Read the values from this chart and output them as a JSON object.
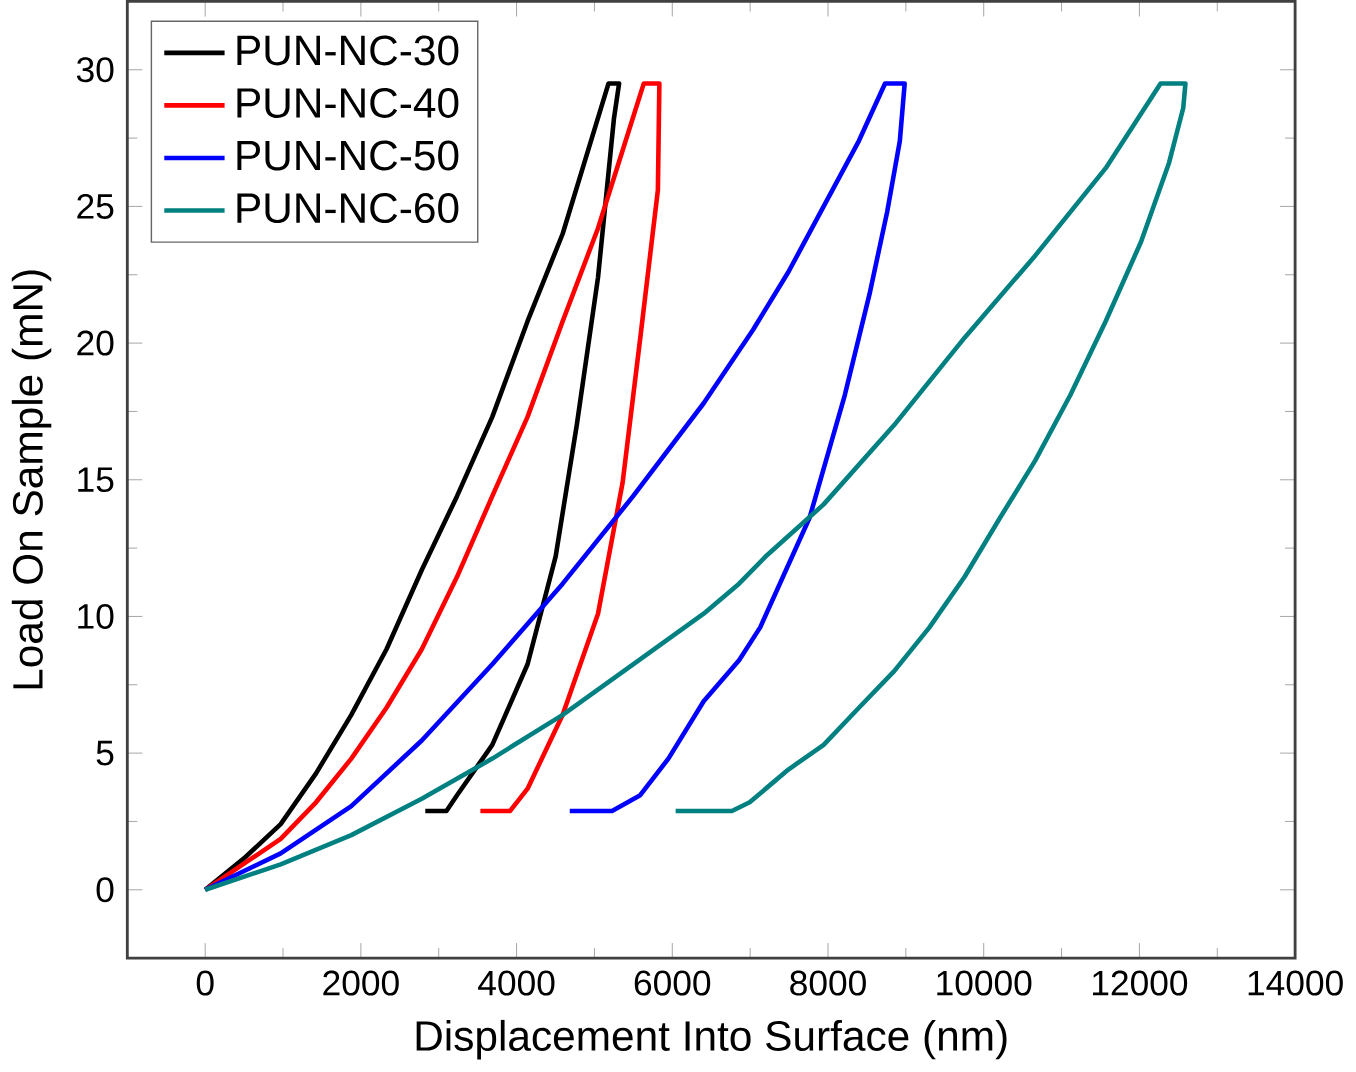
{
  "chart_data": {
    "type": "line",
    "xlabel": "Displacement Into Surface (nm)",
    "ylabel": "Load On Sample (mN)",
    "xlim": [
      -1000,
      14000
    ],
    "ylim": [
      -2.5,
      32.5
    ],
    "xticks": [
      0,
      2000,
      4000,
      6000,
      8000,
      10000,
      12000,
      14000
    ],
    "yticks": [
      0,
      5,
      10,
      15,
      20,
      25,
      30
    ],
    "legend": "top left",
    "grid": false,
    "marker": "none",
    "line_style": "solid",
    "series": [
      {
        "name": "PUN-NC-30",
        "color": "#000000",
        "x": [
          0,
          518,
          970,
          1424,
          1877,
          2329,
          2782,
          3235,
          3688,
          4141,
          4592,
          5181,
          5317,
          5250,
          5046,
          4773,
          4502,
          4141,
          3688,
          3235,
          3099,
          2827
        ],
        "values": [
          0,
          1.2,
          2.4,
          4.26,
          6.4,
          8.8,
          11.7,
          14.4,
          17.3,
          20.8,
          24.0,
          29.5,
          29.5,
          28.2,
          22.4,
          17.0,
          12.2,
          8.25,
          5.3,
          3.46,
          2.88,
          2.88
        ]
      },
      {
        "name": "PUN-NC-40",
        "color": "#ff0000",
        "x": [
          0,
          970,
          1424,
          1877,
          2329,
          2782,
          3235,
          3688,
          4141,
          4592,
          5046,
          5634,
          5834,
          5815,
          5589,
          5362,
          5046,
          4592,
          4141,
          3915,
          3535
        ],
        "values": [
          0,
          1.86,
          3.2,
          4.8,
          6.66,
          8.8,
          11.45,
          14.4,
          17.3,
          20.8,
          24.2,
          29.5,
          29.5,
          25.6,
          20.2,
          14.9,
          10.1,
          6.4,
          3.7,
          2.88,
          2.88
        ]
      },
      {
        "name": "PUN-NC-50",
        "color": "#0000ff",
        "x": [
          0,
          970,
          1877,
          2782,
          3688,
          4592,
          5497,
          6403,
          7040,
          7491,
          7944,
          8397,
          8733,
          8985,
          8923,
          8760,
          8534,
          8216,
          7762,
          7129,
          6858,
          6403,
          5950,
          5588,
          5226,
          4683
        ],
        "values": [
          0,
          1.33,
          3.06,
          5.46,
          8.25,
          11.2,
          14.4,
          17.8,
          20.5,
          22.6,
          25.0,
          27.4,
          29.5,
          29.5,
          27.4,
          24.8,
          21.8,
          18.1,
          13.6,
          9.6,
          8.4,
          6.9,
          4.8,
          3.46,
          2.88,
          2.88
        ]
      },
      {
        "name": "PUN-NC-60",
        "color": "#008080",
        "x": [
          0,
          970,
          1877,
          2782,
          3688,
          4592,
          5497,
          6403,
          6858,
          7220,
          7944,
          8850,
          9755,
          10661,
          11567,
          12272,
          12591,
          12563,
          12381,
          12020,
          11567,
          11113,
          10661,
          10208,
          9755,
          9303,
          8850,
          8397,
          7944,
          7491,
          6994,
          6766,
          6043
        ],
        "values": [
          0,
          0.93,
          2.0,
          3.33,
          4.8,
          6.4,
          8.25,
          10.1,
          11.2,
          12.25,
          14.1,
          17.0,
          20.2,
          23.2,
          26.4,
          29.5,
          29.5,
          28.6,
          26.6,
          23.7,
          20.8,
          18.1,
          15.7,
          13.6,
          11.45,
          9.6,
          8.0,
          6.66,
          5.3,
          4.4,
          3.2,
          2.88,
          2.88
        ]
      }
    ]
  }
}
